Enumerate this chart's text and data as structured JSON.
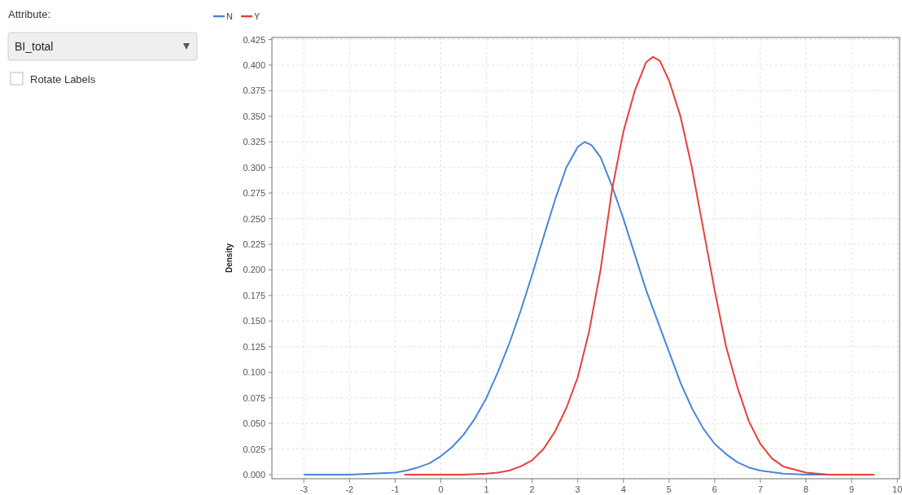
{
  "chart_data": {
    "type": "line",
    "ylabel": "Density",
    "annotations": [
      "Attribute:",
      "BI_total",
      "Rotate Labels"
    ],
    "series": [
      {
        "name": "N",
        "color": "#4a86d8",
        "x": [
          -3,
          -2,
          -1.5,
          -1,
          -0.75,
          -0.5,
          -0.25,
          0,
          0.25,
          0.5,
          0.75,
          1,
          1.25,
          1.5,
          1.75,
          2,
          2.25,
          2.5,
          2.75,
          3,
          3.15,
          3.3,
          3.5,
          3.75,
          4,
          4.25,
          4.5,
          4.75,
          5,
          5.25,
          5.5,
          5.75,
          6,
          6.25,
          6.5,
          6.75,
          7,
          7.5,
          8,
          9.5
        ],
        "values": [
          0,
          0,
          0.001,
          0.002,
          0.004,
          0.007,
          0.011,
          0.018,
          0.027,
          0.039,
          0.055,
          0.075,
          0.1,
          0.128,
          0.16,
          0.195,
          0.232,
          0.268,
          0.3,
          0.32,
          0.325,
          0.322,
          0.31,
          0.282,
          0.25,
          0.215,
          0.18,
          0.15,
          0.12,
          0.09,
          0.065,
          0.045,
          0.03,
          0.02,
          0.012,
          0.007,
          0.004,
          0.001,
          0,
          0
        ]
      },
      {
        "name": "Y",
        "color": "#e8403a",
        "x": [
          -0.8,
          0.5,
          1,
          1.25,
          1.5,
          1.75,
          2,
          2.25,
          2.5,
          2.75,
          3,
          3.25,
          3.5,
          3.75,
          4,
          4.25,
          4.5,
          4.65,
          4.8,
          5,
          5.25,
          5.5,
          5.75,
          6,
          6.25,
          6.5,
          6.75,
          7,
          7.25,
          7.5,
          8,
          8.5,
          9.5
        ],
        "values": [
          0,
          0,
          0.001,
          0.002,
          0.004,
          0.008,
          0.014,
          0.025,
          0.042,
          0.065,
          0.095,
          0.14,
          0.2,
          0.278,
          0.335,
          0.375,
          0.403,
          0.408,
          0.404,
          0.385,
          0.35,
          0.3,
          0.24,
          0.18,
          0.125,
          0.085,
          0.052,
          0.03,
          0.016,
          0.008,
          0.002,
          0,
          0
        ]
      }
    ],
    "xlim": [
      -3.7,
      10.05
    ],
    "ylim": [
      -0.004,
      0.427
    ],
    "xticks": [
      -3,
      -2,
      -1,
      0,
      1,
      2,
      3,
      4,
      5,
      6,
      7,
      8,
      9,
      10
    ],
    "yticks": [
      {
        "value": 0,
        "label": "0.000"
      },
      {
        "value": 0.025,
        "label": "0.025"
      },
      {
        "value": 0.05,
        "label": "0.050"
      },
      {
        "value": 0.075,
        "label": "0.075"
      },
      {
        "value": 0.1,
        "label": "0.100"
      },
      {
        "value": 0.125,
        "label": "0.125"
      },
      {
        "value": 0.15,
        "label": "0.150"
      },
      {
        "value": 0.175,
        "label": "0.175"
      },
      {
        "value": 0.2,
        "label": "0.200"
      },
      {
        "value": 0.225,
        "label": "0.225"
      },
      {
        "value": 0.25,
        "label": "0.250"
      },
      {
        "value": 0.275,
        "label": "0.275"
      },
      {
        "value": 0.3,
        "label": "0.300"
      },
      {
        "value": 0.325,
        "label": "0.325"
      },
      {
        "value": 0.35,
        "label": "0.350"
      },
      {
        "value": 0.375,
        "label": "0.375"
      },
      {
        "value": 0.4,
        "label": "0.400"
      },
      {
        "value": 0.425,
        "label": "0.425"
      }
    ],
    "grid": true,
    "legend": "top left",
    "marker": "none",
    "line_style": "solid"
  }
}
